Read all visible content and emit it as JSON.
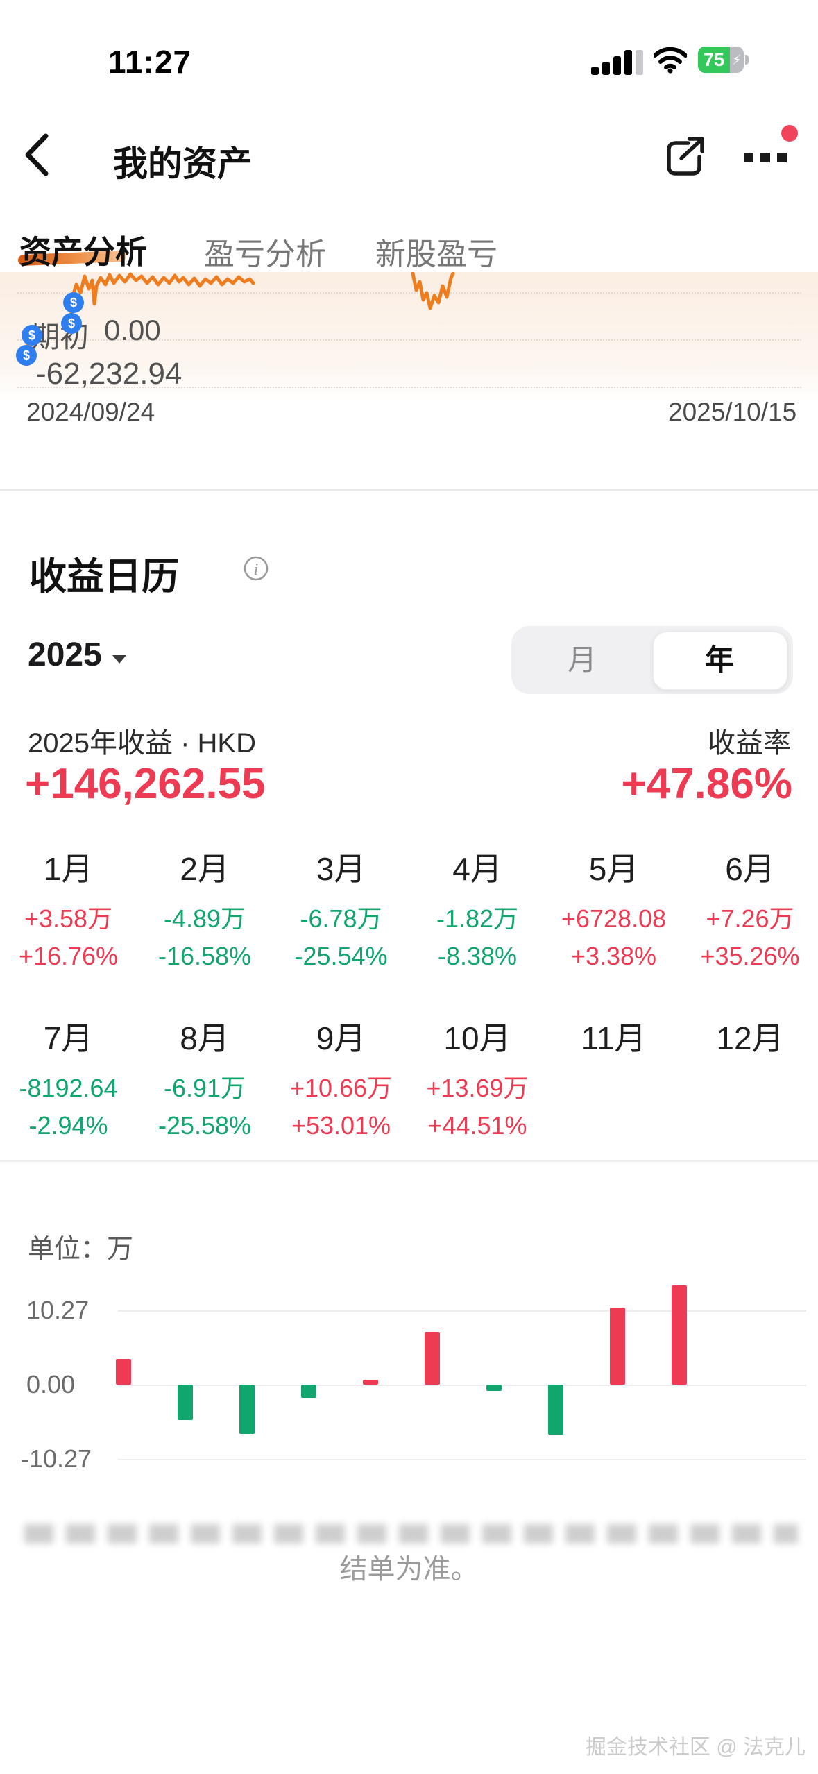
{
  "status_bar": {
    "time": "11:27",
    "battery_percent": "75"
  },
  "header": {
    "title": "我的资产"
  },
  "tabs": {
    "assets": "资产分析",
    "pnl": "盈亏分析",
    "ipo": "新股盈亏"
  },
  "asset_chart": {
    "marker_symbol": "$",
    "period_start_label": "期初",
    "period_start_value": "0.00",
    "low_value": "-62,232.94",
    "date_start": "2024/09/24",
    "date_end": "2025/10/15"
  },
  "calendar": {
    "title": "收益日历",
    "year": "2025",
    "toggle": {
      "month_label": "月",
      "year_label": "年",
      "selected": "年"
    },
    "summary": {
      "label": "2025年收益 · HKD",
      "value": "+146,262.55",
      "rate_label": "收益率",
      "rate_value": "+47.86%"
    },
    "months": [
      {
        "label": "1月",
        "value": "+3.58万",
        "pct": "+16.76%",
        "trend": "up"
      },
      {
        "label": "2月",
        "value": "-4.89万",
        "pct": "-16.58%",
        "trend": "down"
      },
      {
        "label": "3月",
        "value": "-6.78万",
        "pct": "-25.54%",
        "trend": "down"
      },
      {
        "label": "4月",
        "value": "-1.82万",
        "pct": "-8.38%",
        "trend": "down"
      },
      {
        "label": "5月",
        "value": "+6728.08",
        "pct": "+3.38%",
        "trend": "up"
      },
      {
        "label": "6月",
        "value": "+7.26万",
        "pct": "+35.26%",
        "trend": "up"
      },
      {
        "label": "7月",
        "value": "-8192.64",
        "pct": "-2.94%",
        "trend": "down"
      },
      {
        "label": "8月",
        "value": "-6.91万",
        "pct": "-25.58%",
        "trend": "down"
      },
      {
        "label": "9月",
        "value": "+10.66万",
        "pct": "+53.01%",
        "trend": "up"
      },
      {
        "label": "10月",
        "value": "+13.69万",
        "pct": "+44.51%",
        "trend": "up"
      },
      {
        "label": "11月",
        "value": "",
        "pct": "",
        "trend": null
      },
      {
        "label": "12月",
        "value": "",
        "pct": "",
        "trend": null
      }
    ]
  },
  "chart_data": {
    "type": "bar",
    "unit_label": "单位：万",
    "categories": [
      "1月",
      "2月",
      "3月",
      "4月",
      "5月",
      "6月",
      "7月",
      "8月",
      "9月",
      "10月",
      "11月",
      "12月"
    ],
    "values": [
      3.58,
      -4.89,
      -6.78,
      -1.82,
      0.6728,
      7.26,
      -0.8193,
      -6.91,
      10.66,
      13.69,
      null,
      null
    ],
    "yticks": [
      "10.27",
      "0.00",
      "-10.27"
    ],
    "ylim": [
      -10.27,
      14.0
    ],
    "grid": true,
    "colors": {
      "positive": "#ec3b52",
      "negative": "#10a66d"
    }
  },
  "footer": {
    "disclaimer_tail": "结单为准。",
    "watermark": "掘金技术社区 @ 法克儿"
  }
}
